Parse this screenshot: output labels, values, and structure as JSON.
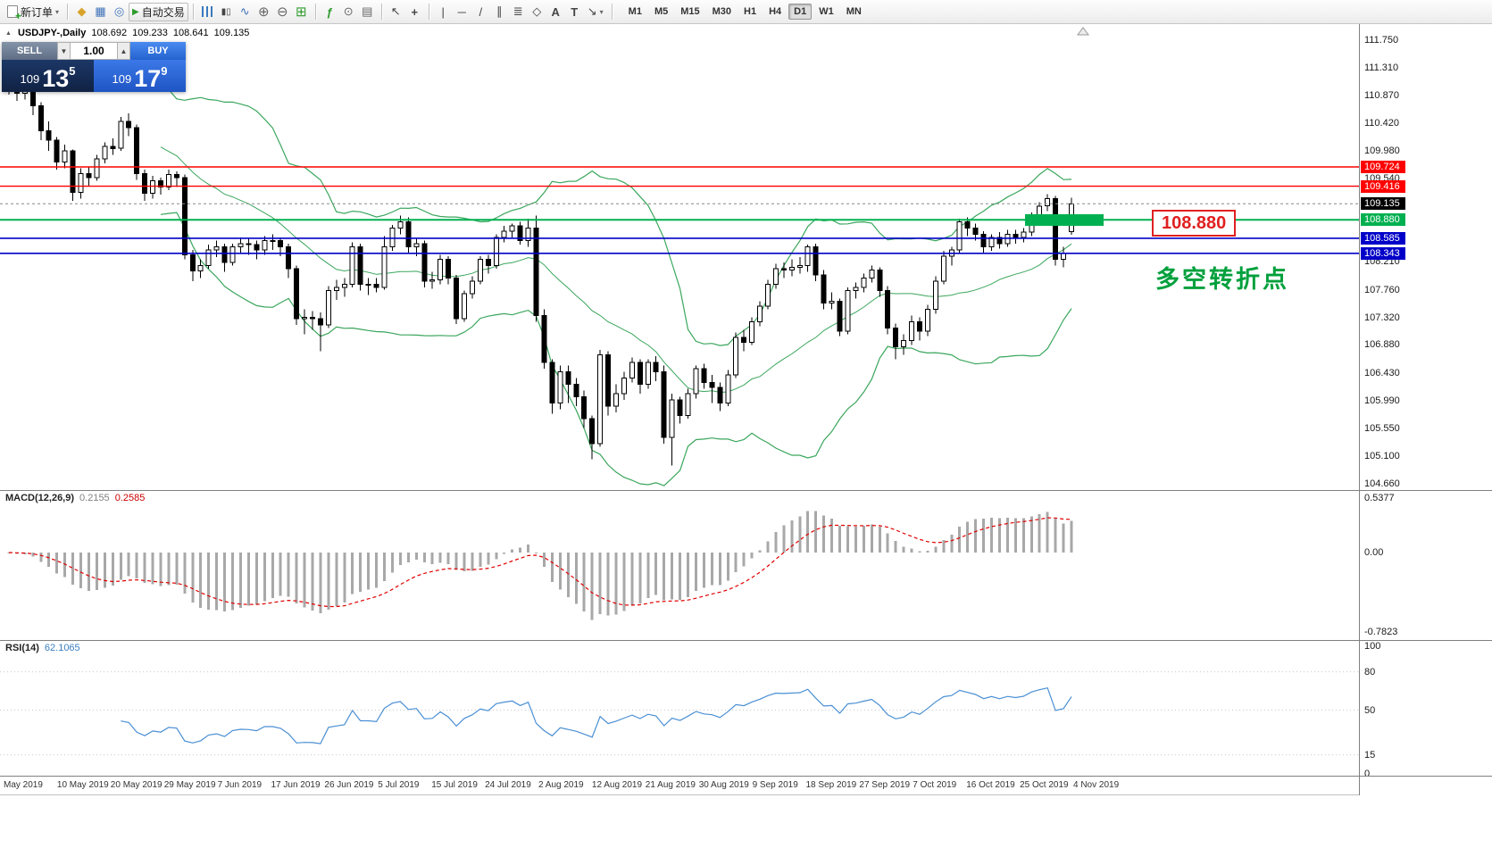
{
  "toolbar": {
    "new_order_label": "新订单",
    "autotrading_label": "自动交易",
    "text_tool": "A",
    "label_tool": "T",
    "timeframes": [
      "M1",
      "M5",
      "M15",
      "M30",
      "H1",
      "H4",
      "D1",
      "W1",
      "MN"
    ],
    "active_timeframe": "D1"
  },
  "chart": {
    "symbol": "USDJPY-,Daily",
    "ohlc": {
      "open": "108.692",
      "high": "109.233",
      "low": "108.641",
      "close": "109.135"
    },
    "trade_panel": {
      "sell_label": "SELL",
      "buy_label": "BUY",
      "volume": "1.00",
      "sell_price": {
        "prefix": "109",
        "big": "13",
        "sup": "5"
      },
      "buy_price": {
        "prefix": "109",
        "big": "17",
        "sup": "9"
      }
    },
    "annotations": {
      "price_label": "108.880",
      "cn_note": "多空转折点"
    },
    "current_price": 109.135,
    "hlines": [
      {
        "price": 109.724,
        "color": "#ff0000",
        "width": 1.4
      },
      {
        "price": 109.416,
        "color": "#ff0000",
        "width": 1.4
      },
      {
        "price": 108.88,
        "color": "#00b050",
        "width": 2
      },
      {
        "price": 108.585,
        "color": "#0000c8",
        "width": 1.6
      },
      {
        "price": 108.343,
        "color": "#0000c8",
        "width": 1.6
      }
    ],
    "price_tags": [
      {
        "text": "109.724",
        "color": "#ff0000"
      },
      {
        "text": "109.416",
        "color": "#ff0000"
      },
      {
        "text": "109.135",
        "color": "#000000"
      },
      {
        "text": "108.880",
        "color": "#00b050"
      },
      {
        "text": "108.585",
        "color": "#0000c8"
      },
      {
        "text": "108.343",
        "color": "#0000c8"
      }
    ],
    "price_axis_labels": [
      "111.750",
      "111.310",
      "110.870",
      "110.420",
      "109.980",
      "109.540",
      "108.210",
      "107.760",
      "107.320",
      "106.880",
      "106.430",
      "105.990",
      "105.550",
      "105.100",
      "104.660"
    ]
  },
  "macd": {
    "label": "MACD(12,26,9)",
    "value1": "0.2155",
    "value2": "0.2585",
    "axis": [
      "0.5377",
      "0.00",
      "-0.7823"
    ]
  },
  "rsi": {
    "label": "RSI(14)",
    "value": "62.1065",
    "axis": [
      "100",
      "80",
      "50",
      "15",
      "0"
    ],
    "levels": [
      80,
      50,
      15
    ]
  },
  "dates": [
    "May 2019",
    "10 May 2019",
    "20 May 2019",
    "29 May 2019",
    "7 Jun 2019",
    "17 Jun 2019",
    "26 Jun 2019",
    "5 Jul 2019",
    "15 Jul 2019",
    "24 Jul 2019",
    "2 Aug 2019",
    "12 Aug 2019",
    "21 Aug 2019",
    "30 Aug 2019",
    "9 Sep 2019",
    "18 Sep 2019",
    "27 Sep 2019",
    "7 Oct 2019",
    "16 Oct 2019",
    "25 Oct 2019",
    "4 Nov 2019"
  ],
  "colors": {
    "line_red": "#ff0000",
    "line_green": "#00b050",
    "line_blue": "#0000c8",
    "bollinger_green": "#3aa65c",
    "macd_hist": "#a8a8a8",
    "macd_signal": "#e00000",
    "rsi_blue": "#4a8fd3",
    "candle_up": "#ffffff",
    "candle_down": "#000000",
    "annotation_green": "#00a03c",
    "annotation_red": "#e02020"
  },
  "chart_data": {
    "type": "candlestick",
    "symbol": "USDJPY",
    "timeframe": "Daily",
    "price_range": [
      104.66,
      111.75
    ],
    "overlays": {
      "bollinger_period": 20,
      "bollinger_dev": 2
    },
    "indicators": [
      {
        "name": "MACD",
        "params": [
          12,
          26,
          9
        ],
        "range": [
          -0.7823,
          0.5377
        ]
      },
      {
        "name": "RSI",
        "params": [
          14
        ],
        "range": [
          0,
          100
        ]
      }
    ],
    "candles": [
      [
        111.15,
        111.22,
        110.88,
        111.05
      ],
      [
        111.05,
        111.18,
        110.78,
        110.9
      ],
      [
        110.9,
        111.08,
        110.8,
        110.95
      ],
      [
        110.95,
        111.0,
        110.55,
        110.7
      ],
      [
        110.7,
        110.76,
        110.15,
        110.3
      ],
      [
        110.3,
        110.45,
        109.98,
        110.15
      ],
      [
        110.15,
        110.2,
        109.68,
        109.8
      ],
      [
        109.8,
        110.08,
        109.7,
        109.98
      ],
      [
        109.98,
        110.0,
        109.18,
        109.32
      ],
      [
        109.32,
        109.7,
        109.22,
        109.62
      ],
      [
        109.62,
        109.72,
        109.42,
        109.55
      ],
      [
        109.55,
        109.92,
        109.5,
        109.85
      ],
      [
        109.85,
        110.12,
        109.78,
        110.05
      ],
      [
        110.05,
        110.18,
        109.92,
        110.02
      ],
      [
        110.02,
        110.52,
        109.98,
        110.45
      ],
      [
        110.45,
        110.58,
        110.22,
        110.35
      ],
      [
        110.35,
        110.4,
        109.52,
        109.62
      ],
      [
        109.62,
        109.68,
        109.18,
        109.3
      ],
      [
        109.3,
        109.58,
        109.22,
        109.5
      ],
      [
        109.5,
        109.55,
        109.28,
        109.4
      ],
      [
        109.4,
        109.68,
        109.35,
        109.6
      ],
      [
        109.6,
        109.65,
        109.4,
        109.55
      ],
      [
        109.55,
        109.6,
        108.25,
        108.32
      ],
      [
        108.32,
        108.4,
        107.9,
        108.06
      ],
      [
        108.06,
        108.25,
        107.95,
        108.15
      ],
      [
        108.15,
        108.48,
        108.1,
        108.4
      ],
      [
        108.4,
        108.55,
        108.28,
        108.45
      ],
      [
        108.45,
        108.5,
        108.05,
        108.2
      ],
      [
        108.2,
        108.5,
        108.15,
        108.45
      ],
      [
        108.45,
        108.6,
        108.35,
        108.5
      ],
      [
        108.5,
        108.58,
        108.32,
        108.48
      ],
      [
        108.48,
        108.55,
        108.25,
        108.4
      ],
      [
        108.4,
        108.62,
        108.32,
        108.55
      ],
      [
        108.55,
        108.65,
        108.4,
        108.55
      ],
      [
        108.55,
        108.6,
        108.3,
        108.45
      ],
      [
        108.45,
        108.5,
        107.95,
        108.1
      ],
      [
        108.1,
        108.15,
        107.2,
        107.3
      ],
      [
        107.3,
        107.45,
        107.05,
        107.32
      ],
      [
        107.32,
        107.42,
        107.12,
        107.3
      ],
      [
        107.3,
        107.4,
        106.78,
        107.2
      ],
      [
        107.2,
        107.82,
        107.15,
        107.75
      ],
      [
        107.75,
        107.92,
        107.6,
        107.8
      ],
      [
        107.8,
        107.95,
        107.65,
        107.85
      ],
      [
        107.85,
        108.52,
        107.8,
        108.45
      ],
      [
        108.45,
        108.5,
        107.75,
        107.85
      ],
      [
        107.85,
        107.95,
        107.68,
        107.85
      ],
      [
        107.85,
        107.95,
        107.72,
        107.8
      ],
      [
        107.8,
        108.62,
        107.76,
        108.45
      ],
      [
        108.45,
        108.8,
        108.38,
        108.75
      ],
      [
        108.75,
        108.95,
        108.65,
        108.85
      ],
      [
        108.85,
        108.92,
        108.35,
        108.45
      ],
      [
        108.45,
        108.58,
        108.3,
        108.5
      ],
      [
        108.5,
        108.55,
        107.8,
        107.9
      ],
      [
        107.9,
        108.05,
        107.78,
        107.92
      ],
      [
        107.92,
        108.32,
        107.85,
        108.25
      ],
      [
        108.25,
        108.3,
        107.85,
        107.95
      ],
      [
        107.95,
        108.0,
        107.21,
        107.3
      ],
      [
        107.3,
        107.75,
        107.25,
        107.7
      ],
      [
        107.7,
        107.98,
        107.62,
        107.9
      ],
      [
        107.9,
        108.3,
        107.85,
        108.25
      ],
      [
        108.25,
        108.32,
        108.02,
        108.15
      ],
      [
        108.15,
        108.65,
        108.1,
        108.6
      ],
      [
        108.6,
        108.78,
        108.52,
        108.7
      ],
      [
        108.7,
        108.82,
        108.6,
        108.78
      ],
      [
        108.78,
        108.85,
        108.48,
        108.55
      ],
      [
        108.55,
        108.9,
        108.45,
        108.75
      ],
      [
        108.75,
        108.95,
        107.25,
        107.35
      ],
      [
        107.35,
        107.45,
        106.5,
        106.6
      ],
      [
        106.6,
        106.65,
        105.78,
        105.95
      ],
      [
        105.95,
        106.55,
        105.85,
        106.45
      ],
      [
        106.45,
        106.55,
        105.95,
        106.25
      ],
      [
        106.25,
        106.35,
        105.9,
        106.05
      ],
      [
        106.05,
        106.15,
        105.55,
        105.7
      ],
      [
        105.7,
        105.75,
        105.05,
        105.3
      ],
      [
        105.3,
        106.8,
        105.25,
        106.72
      ],
      [
        106.72,
        106.78,
        105.75,
        105.9
      ],
      [
        105.9,
        106.25,
        105.8,
        106.1
      ],
      [
        106.1,
        106.45,
        106.0,
        106.35
      ],
      [
        106.35,
        106.68,
        106.28,
        106.6
      ],
      [
        106.6,
        106.65,
        106.1,
        106.25
      ],
      [
        106.25,
        106.65,
        106.18,
        106.6
      ],
      [
        106.6,
        106.7,
        106.3,
        106.45
      ],
      [
        106.45,
        106.55,
        105.3,
        105.4
      ],
      [
        105.4,
        106.1,
        104.95,
        106.0
      ],
      [
        106.0,
        106.05,
        105.62,
        105.75
      ],
      [
        105.75,
        106.18,
        105.7,
        106.1
      ],
      [
        106.1,
        106.55,
        106.02,
        106.5
      ],
      [
        106.5,
        106.58,
        106.18,
        106.28
      ],
      [
        106.28,
        106.4,
        105.95,
        106.2
      ],
      [
        106.2,
        106.28,
        105.82,
        105.95
      ],
      [
        105.95,
        106.48,
        105.9,
        106.4
      ],
      [
        106.4,
        107.08,
        106.35,
        107.0
      ],
      [
        107.0,
        107.12,
        106.78,
        106.92
      ],
      [
        106.92,
        107.32,
        106.88,
        107.25
      ],
      [
        107.25,
        107.58,
        107.18,
        107.5
      ],
      [
        107.5,
        107.92,
        107.45,
        107.85
      ],
      [
        107.85,
        108.18,
        107.78,
        108.1
      ],
      [
        108.1,
        108.2,
        107.95,
        108.08
      ],
      [
        108.08,
        108.25,
        107.98,
        108.12
      ],
      [
        108.12,
        108.28,
        108.02,
        108.15
      ],
      [
        108.15,
        108.48,
        108.05,
        108.45
      ],
      [
        108.45,
        108.5,
        107.9,
        108.0
      ],
      [
        108.0,
        108.08,
        107.45,
        107.55
      ],
      [
        107.55,
        107.72,
        107.45,
        107.58
      ],
      [
        107.58,
        107.62,
        107.02,
        107.1
      ],
      [
        107.1,
        107.8,
        107.05,
        107.75
      ],
      [
        107.75,
        107.88,
        107.62,
        107.8
      ],
      [
        107.8,
        108.02,
        107.72,
        107.95
      ],
      [
        107.95,
        108.15,
        107.88,
        108.08
      ],
      [
        108.08,
        108.12,
        107.65,
        107.75
      ],
      [
        107.75,
        107.82,
        107.05,
        107.15
      ],
      [
        107.15,
        107.22,
        106.65,
        106.85
      ],
      [
        106.85,
        107.05,
        106.72,
        106.95
      ],
      [
        106.95,
        107.35,
        106.88,
        107.25
      ],
      [
        107.25,
        107.32,
        106.95,
        107.1
      ],
      [
        107.1,
        107.52,
        107.02,
        107.45
      ],
      [
        107.45,
        107.98,
        107.38,
        107.9
      ],
      [
        107.9,
        108.38,
        107.85,
        108.3
      ],
      [
        108.3,
        108.45,
        108.15,
        108.4
      ],
      [
        108.4,
        108.9,
        108.35,
        108.85
      ],
      [
        108.85,
        108.92,
        108.62,
        108.75
      ],
      [
        108.75,
        108.82,
        108.55,
        108.65
      ],
      [
        108.65,
        108.7,
        108.35,
        108.45
      ],
      [
        108.45,
        108.65,
        108.38,
        108.6
      ],
      [
        108.6,
        108.68,
        108.42,
        108.5
      ],
      [
        108.5,
        108.72,
        108.45,
        108.65
      ],
      [
        108.65,
        108.72,
        108.5,
        108.6
      ],
      [
        108.6,
        108.75,
        108.52,
        108.68
      ],
      [
        108.68,
        109.0,
        108.62,
        108.95
      ],
      [
        108.95,
        109.16,
        108.88,
        109.1
      ],
      [
        109.1,
        109.29,
        109.02,
        109.22
      ],
      [
        109.22,
        109.26,
        108.15,
        108.25
      ],
      [
        108.25,
        108.45,
        108.12,
        108.35
      ],
      [
        108.692,
        109.233,
        108.641,
        109.135
      ]
    ]
  }
}
